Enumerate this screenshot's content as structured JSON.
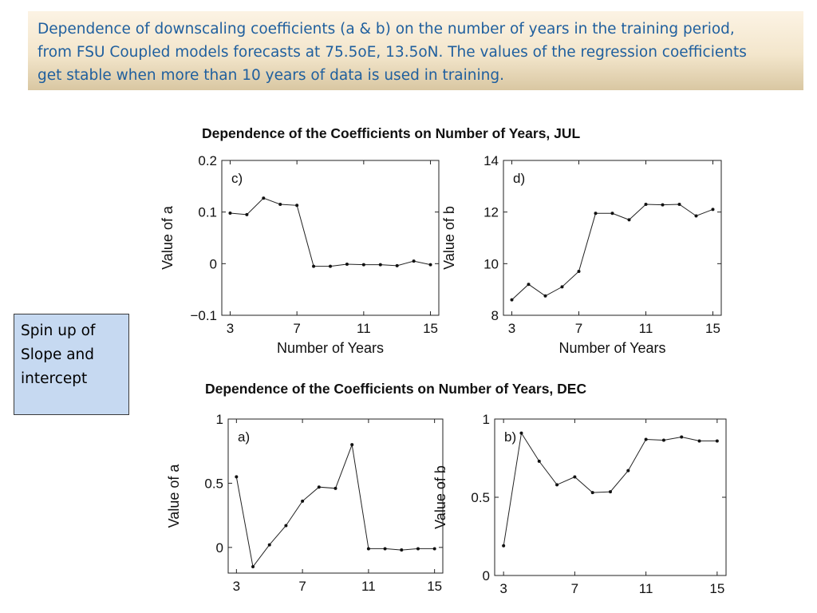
{
  "banner": {
    "caption_line1": "Dependence of downscaling coefficients (a & b) on the number of years in the training period,",
    "caption_line2": "from FSU Coupled models forecasts at 75.5oE, 13.5oN. The values of the regression coefficients",
    "caption_line3": "get stable when more than 10 years of data is used in training."
  },
  "callout": {
    "line1": "Spin up of",
    "line2": "Slope and",
    "line3": "intercept"
  },
  "figures": {
    "jul_title": "Dependence of the Coefficients on Number of Years, JUL",
    "dec_title": "Dependence of the Coefficients on Number of Years, DEC"
  },
  "colors": {
    "banner_text": "#1f5f9e",
    "callout_bg": "#c6d9f1",
    "line": "#222222"
  },
  "chart_data": [
    {
      "id": "c",
      "type": "line",
      "panel_label": "c)",
      "title": "",
      "xlabel": "Number of Years",
      "ylabel": "Value of a",
      "xlim": [
        2.5,
        15.5
      ],
      "ylim": [
        -0.1,
        0.2
      ],
      "xticks": [
        3,
        7,
        11,
        15
      ],
      "yticks": [
        -0.1,
        0,
        0.1,
        0.2
      ],
      "ytick_labels": [
        "−0.1",
        "0",
        "0.1",
        "0.2"
      ],
      "x": [
        3,
        4,
        5,
        6,
        7,
        8,
        9,
        10,
        11,
        12,
        13,
        14,
        15
      ],
      "values": [
        0.098,
        0.095,
        0.127,
        0.115,
        0.113,
        -0.005,
        -0.005,
        -0.001,
        -0.002,
        -0.002,
        -0.004,
        0.005,
        -0.002
      ]
    },
    {
      "id": "d",
      "type": "line",
      "panel_label": "d)",
      "title": "",
      "xlabel": "Number of Years",
      "ylabel": "Value of b",
      "xlim": [
        2.5,
        15.5
      ],
      "ylim": [
        8,
        14
      ],
      "xticks": [
        3,
        7,
        11,
        15
      ],
      "yticks": [
        8,
        10,
        12,
        14
      ],
      "ytick_labels": [
        "8",
        "10",
        "12",
        "14"
      ],
      "x": [
        3,
        4,
        5,
        6,
        7,
        8,
        9,
        10,
        11,
        12,
        13,
        14,
        15
      ],
      "values": [
        8.6,
        9.2,
        8.75,
        9.1,
        9.7,
        11.95,
        11.95,
        11.7,
        12.3,
        12.28,
        12.3,
        11.85,
        12.1
      ]
    },
    {
      "id": "a",
      "type": "line",
      "panel_label": "a)",
      "title": "",
      "xlabel": "",
      "ylabel": "Value of a",
      "xlim": [
        2.5,
        15.5
      ],
      "ylim": [
        -0.2,
        1
      ],
      "xticks": [
        3,
        7,
        11,
        15
      ],
      "yticks": [
        0,
        0.5,
        1
      ],
      "ytick_labels": [
        "0",
        "0.5",
        "1"
      ],
      "x": [
        3,
        4,
        5,
        6,
        7,
        8,
        9,
        10,
        11,
        12,
        13,
        14,
        15
      ],
      "values": [
        0.55,
        -0.15,
        0.02,
        0.17,
        0.36,
        0.47,
        0.46,
        0.8,
        -0.01,
        -0.01,
        -0.02,
        -0.01,
        -0.01
      ]
    },
    {
      "id": "b",
      "type": "line",
      "panel_label": "b)",
      "title": "",
      "xlabel": "",
      "ylabel": "Value of b",
      "xlim": [
        2.5,
        15.5
      ],
      "ylim": [
        0,
        1
      ],
      "xticks": [
        3,
        7,
        11,
        15
      ],
      "yticks": [
        0,
        0.5,
        1
      ],
      "ytick_labels": [
        "0",
        "0.5",
        "1"
      ],
      "x": [
        3,
        4,
        5,
        6,
        7,
        8,
        9,
        10,
        11,
        12,
        13,
        14,
        15
      ],
      "values": [
        0.19,
        0.91,
        0.73,
        0.58,
        0.63,
        0.53,
        0.535,
        0.67,
        0.87,
        0.865,
        0.885,
        0.86,
        0.86
      ]
    }
  ]
}
